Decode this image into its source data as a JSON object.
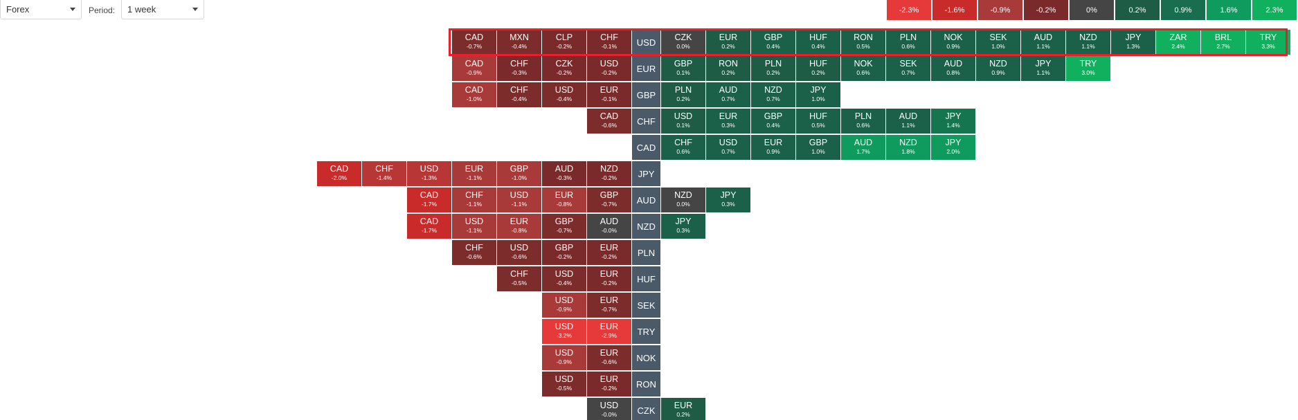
{
  "controls": {
    "market": "Forex",
    "period_label": "Period:",
    "period": "1 week"
  },
  "legend": [
    {
      "label": "-2.3%",
      "color": "#e63a3a"
    },
    {
      "label": "-1.6%",
      "color": "#c92a2a"
    },
    {
      "label": "-0.9%",
      "color": "#a93a3a"
    },
    {
      "label": "-0.2%",
      "color": "#7a2a2a"
    },
    {
      "label": "0%",
      "color": "#454545"
    },
    {
      "label": "0.2%",
      "color": "#1e5c46"
    },
    {
      "label": "0.9%",
      "color": "#186e4e"
    },
    {
      "label": "1.6%",
      "color": "#0f9a5e"
    },
    {
      "label": "2.3%",
      "color": "#10b05e"
    }
  ],
  "colors": {
    "highlight": "#e8202b",
    "base": "#4a5a68"
  },
  "rows": [
    {
      "base": "USD",
      "highlighted": true,
      "left": [
        {
          "code": "CAD",
          "pct": "-0.7%"
        },
        {
          "code": "MXN",
          "pct": "-0.4%"
        },
        {
          "code": "CLP",
          "pct": "-0.2%"
        },
        {
          "code": "CHF",
          "pct": "-0.1%"
        }
      ],
      "right": [
        {
          "code": "CZK",
          "pct": "0.0%"
        },
        {
          "code": "EUR",
          "pct": "0.2%"
        },
        {
          "code": "GBP",
          "pct": "0.4%"
        },
        {
          "code": "HUF",
          "pct": "0.4%"
        },
        {
          "code": "RON",
          "pct": "0.5%"
        },
        {
          "code": "PLN",
          "pct": "0.6%"
        },
        {
          "code": "NOK",
          "pct": "0.9%"
        },
        {
          "code": "SEK",
          "pct": "1.0%"
        },
        {
          "code": "AUD",
          "pct": "1.1%"
        },
        {
          "code": "NZD",
          "pct": "1.1%"
        },
        {
          "code": "JPY",
          "pct": "1.3%"
        },
        {
          "code": "ZAR",
          "pct": "2.4%"
        },
        {
          "code": "BRL",
          "pct": "2.7%"
        },
        {
          "code": "TRY",
          "pct": "3.3%"
        }
      ]
    },
    {
      "base": "EUR",
      "left": [
        {
          "code": "CAD",
          "pct": "-0.9%"
        },
        {
          "code": "CHF",
          "pct": "-0.3%"
        },
        {
          "code": "CZK",
          "pct": "-0.2%"
        },
        {
          "code": "USD",
          "pct": "-0.2%"
        }
      ],
      "right": [
        {
          "code": "GBP",
          "pct": "0.1%"
        },
        {
          "code": "RON",
          "pct": "0.2%"
        },
        {
          "code": "PLN",
          "pct": "0.2%"
        },
        {
          "code": "HUF",
          "pct": "0.2%"
        },
        {
          "code": "NOK",
          "pct": "0.6%"
        },
        {
          "code": "SEK",
          "pct": "0.7%"
        },
        {
          "code": "AUD",
          "pct": "0.8%"
        },
        {
          "code": "NZD",
          "pct": "0.9%"
        },
        {
          "code": "JPY",
          "pct": "1.1%"
        },
        {
          "code": "TRY",
          "pct": "3.0%"
        }
      ]
    },
    {
      "base": "GBP",
      "left": [
        {
          "code": "CAD",
          "pct": "-1.0%"
        },
        {
          "code": "CHF",
          "pct": "-0.4%"
        },
        {
          "code": "USD",
          "pct": "-0.4%"
        },
        {
          "code": "EUR",
          "pct": "-0.1%"
        }
      ],
      "right": [
        {
          "code": "PLN",
          "pct": "0.2%"
        },
        {
          "code": "AUD",
          "pct": "0.7%"
        },
        {
          "code": "NZD",
          "pct": "0.7%"
        },
        {
          "code": "JPY",
          "pct": "1.0%"
        }
      ]
    },
    {
      "base": "CHF",
      "left": [
        {
          "code": "CAD",
          "pct": "-0.6%"
        }
      ],
      "right": [
        {
          "code": "USD",
          "pct": "0.1%"
        },
        {
          "code": "EUR",
          "pct": "0.3%"
        },
        {
          "code": "GBP",
          "pct": "0.4%"
        },
        {
          "code": "HUF",
          "pct": "0.5%"
        },
        {
          "code": "PLN",
          "pct": "0.6%"
        },
        {
          "code": "AUD",
          "pct": "1.1%"
        },
        {
          "code": "JPY",
          "pct": "1.4%"
        }
      ]
    },
    {
      "base": "CAD",
      "left": [],
      "right": [
        {
          "code": "CHF",
          "pct": "0.6%"
        },
        {
          "code": "USD",
          "pct": "0.7%"
        },
        {
          "code": "EUR",
          "pct": "0.9%"
        },
        {
          "code": "GBP",
          "pct": "1.0%"
        },
        {
          "code": "AUD",
          "pct": "1.7%"
        },
        {
          "code": "NZD",
          "pct": "1.8%"
        },
        {
          "code": "JPY",
          "pct": "2.0%"
        }
      ]
    },
    {
      "base": "JPY",
      "left": [
        {
          "code": "CAD",
          "pct": "-2.0%"
        },
        {
          "code": "CHF",
          "pct": "-1.4%"
        },
        {
          "code": "USD",
          "pct": "-1.3%"
        },
        {
          "code": "EUR",
          "pct": "-1.1%"
        },
        {
          "code": "GBP",
          "pct": "-1.0%"
        },
        {
          "code": "AUD",
          "pct": "-0.3%"
        },
        {
          "code": "NZD",
          "pct": "-0.2%"
        }
      ],
      "right": []
    },
    {
      "base": "AUD",
      "left": [
        {
          "code": "CAD",
          "pct": "-1.7%"
        },
        {
          "code": "CHF",
          "pct": "-1.1%"
        },
        {
          "code": "USD",
          "pct": "-1.1%"
        },
        {
          "code": "EUR",
          "pct": "-0.8%"
        },
        {
          "code": "GBP",
          "pct": "-0.7%"
        }
      ],
      "right": [
        {
          "code": "NZD",
          "pct": "0.0%"
        },
        {
          "code": "JPY",
          "pct": "0.3%"
        }
      ]
    },
    {
      "base": "NZD",
      "left": [
        {
          "code": "CAD",
          "pct": "-1.7%"
        },
        {
          "code": "USD",
          "pct": "-1.1%"
        },
        {
          "code": "EUR",
          "pct": "-0.8%"
        },
        {
          "code": "GBP",
          "pct": "-0.7%"
        },
        {
          "code": "AUD",
          "pct": "-0.0%"
        }
      ],
      "right": [
        {
          "code": "JPY",
          "pct": "0.3%"
        }
      ]
    },
    {
      "base": "PLN",
      "left": [
        {
          "code": "CHF",
          "pct": "-0.6%"
        },
        {
          "code": "USD",
          "pct": "-0.6%"
        },
        {
          "code": "GBP",
          "pct": "-0.2%"
        },
        {
          "code": "EUR",
          "pct": "-0.2%"
        }
      ],
      "right": []
    },
    {
      "base": "HUF",
      "left": [
        {
          "code": "CHF",
          "pct": "-0.5%"
        },
        {
          "code": "USD",
          "pct": "-0.4%"
        },
        {
          "code": "EUR",
          "pct": "-0.2%"
        }
      ],
      "right": []
    },
    {
      "base": "SEK",
      "left": [
        {
          "code": "USD",
          "pct": "-0.9%"
        },
        {
          "code": "EUR",
          "pct": "-0.7%"
        }
      ],
      "right": []
    },
    {
      "base": "TRY",
      "left": [
        {
          "code": "USD",
          "pct": "-3.2%"
        },
        {
          "code": "EUR",
          "pct": "-2.9%"
        }
      ],
      "right": []
    },
    {
      "base": "NOK",
      "left": [
        {
          "code": "USD",
          "pct": "-0.9%"
        },
        {
          "code": "EUR",
          "pct": "-0.6%"
        }
      ],
      "right": []
    },
    {
      "base": "RON",
      "left": [
        {
          "code": "USD",
          "pct": "-0.5%"
        },
        {
          "code": "EUR",
          "pct": "-0.2%"
        }
      ],
      "right": []
    },
    {
      "base": "CZK",
      "left": [
        {
          "code": "USD",
          "pct": "-0.0%"
        }
      ],
      "right": [
        {
          "code": "EUR",
          "pct": "0.2%"
        }
      ]
    }
  ]
}
